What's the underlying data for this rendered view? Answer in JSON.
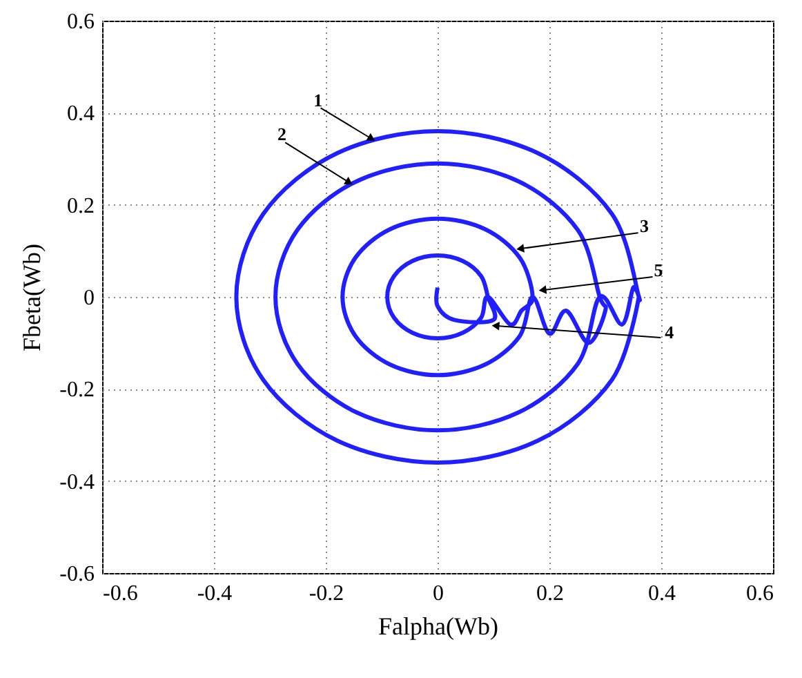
{
  "chart_data": {
    "type": "line",
    "xlabel": "Falpha(Wb)",
    "ylabel": "Fbeta(Wb)",
    "xlim": [
      -0.6,
      0.6
    ],
    "ylim": [
      -0.6,
      0.6
    ],
    "xticks": [
      -0.6,
      -0.4,
      -0.2,
      0,
      0.2,
      0.4,
      0.6
    ],
    "yticks": [
      -0.6,
      -0.4,
      -0.2,
      0,
      0.2,
      0.4,
      0.6
    ],
    "grid": true,
    "series": [
      {
        "color": "#1f1fff",
        "x": [
          0,
          0,
          0.03,
          0.1,
          0.09,
          0.078,
          0.045,
          0,
          -0.045,
          -0.078,
          -0.09,
          -0.078,
          -0.045,
          0,
          0.045,
          0.078,
          0.09,
          0.13,
          0.15,
          0.17,
          0.147,
          0.085,
          0,
          -0.085,
          -0.147,
          -0.17,
          -0.147,
          -0.085,
          0,
          0.085,
          0.147,
          0.17,
          0.2,
          0.23,
          0.27,
          0.3,
          0.29,
          0.251,
          0.145,
          0,
          -0.145,
          -0.251,
          -0.29,
          -0.251,
          -0.145,
          0,
          0.145,
          0.251,
          0.29,
          0.33,
          0.35,
          0.36,
          0.312,
          0.18,
          0,
          -0.18,
          -0.312,
          -0.36,
          -0.312,
          -0.18,
          0,
          0.18,
          0.312,
          0.36
        ],
        "values": [
          0.02,
          -0.02,
          -0.05,
          -0.05,
          0,
          0.045,
          0.078,
          0.09,
          0.078,
          0.045,
          0,
          -0.045,
          -0.078,
          -0.09,
          -0.078,
          -0.045,
          0,
          -0.06,
          -0.03,
          0,
          0.085,
          0.147,
          0.17,
          0.147,
          0.085,
          0,
          -0.085,
          -0.147,
          -0.17,
          -0.147,
          -0.085,
          0,
          -0.08,
          -0.03,
          -0.1,
          -0.03,
          0,
          0.145,
          0.251,
          0.29,
          0.251,
          0.145,
          0,
          -0.145,
          -0.251,
          -0.29,
          -0.251,
          -0.145,
          0,
          -0.06,
          0.02,
          0,
          0.18,
          0.312,
          0.36,
          0.312,
          0.18,
          0,
          -0.18,
          -0.312,
          -0.36,
          -0.312,
          -0.18,
          0
        ]
      }
    ],
    "annotations": [
      {
        "text": "1",
        "x": -0.12,
        "y": 0.345
      },
      {
        "text": "2",
        "x": -0.16,
        "y": 0.25
      },
      {
        "text": "3",
        "x": 0.15,
        "y": 0.105
      },
      {
        "text": "5",
        "x": 0.19,
        "y": 0.015
      },
      {
        "text": "4",
        "x": 0.106,
        "y": -0.063
      }
    ]
  }
}
